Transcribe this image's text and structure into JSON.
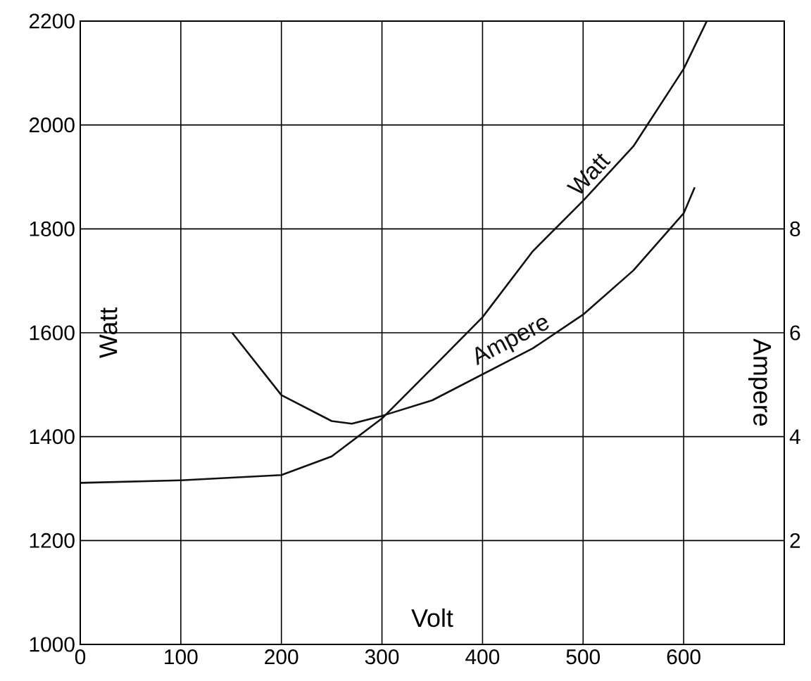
{
  "chart_data": {
    "type": "line",
    "xlabel": "Volt",
    "ylabel": "Watt",
    "y2label": "Ampere",
    "x": [
      0,
      100,
      200,
      250,
      300,
      350,
      400,
      450,
      500,
      550,
      600,
      623
    ],
    "series": [
      {
        "name": "Watt",
        "color": "#111111",
        "values": [
          1311,
          1316,
          1326,
          1362,
          1435,
          1532,
          1630,
          1757,
          1854,
          1959,
          2108,
          2200
        ]
      },
      {
        "name": "Ampere",
        "color": "#111111",
        "axis": "y2",
        "x": [
          151,
          200,
          250,
          270,
          300,
          350,
          400,
          450,
          500,
          550,
          600,
          611
        ],
        "values": [
          6.0,
          4.8,
          4.3,
          4.25,
          4.4,
          4.7,
          5.2,
          5.7,
          6.35,
          7.2,
          8.3,
          8.8
        ]
      }
    ],
    "xlim": [
      0,
      700
    ],
    "xticks": [
      0,
      100,
      200,
      300,
      400,
      500,
      600
    ],
    "ylim": [
      1000,
      2200
    ],
    "yticks": [
      1000,
      1200,
      1400,
      1600,
      1800,
      2000,
      2200
    ],
    "y2lim": [
      0,
      12
    ],
    "y2ticks": [
      2,
      4,
      6,
      8
    ],
    "grid": true,
    "marker": "none",
    "line_style": "solid"
  }
}
